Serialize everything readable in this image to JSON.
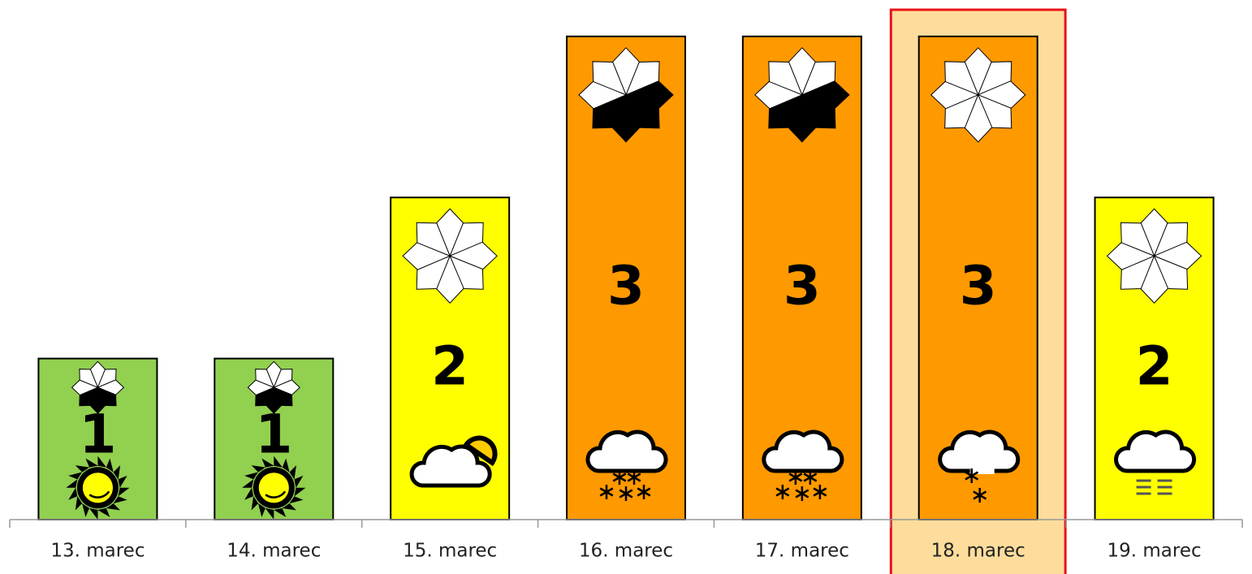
{
  "chart_data": {
    "type": "bar",
    "categories": [
      "13. marec",
      "14. marec",
      "15. marec",
      "16. marec",
      "17. marec",
      "18. marec",
      "19. marec"
    ],
    "values": [
      1,
      1,
      2,
      3,
      3,
      3,
      2
    ],
    "colors": [
      "#92d050",
      "#92d050",
      "#ffff00",
      "#ff9900",
      "#ff9900",
      "#ff9900",
      "#ffff00"
    ],
    "aspects": [
      [
        0,
        0,
        0,
        1,
        1,
        1,
        0,
        0
      ],
      [
        0,
        0,
        0,
        1,
        1,
        1,
        0,
        0
      ],
      [
        0,
        0,
        0,
        0,
        0,
        0,
        0,
        0
      ],
      [
        0,
        0,
        1,
        1,
        1,
        1,
        0,
        0
      ],
      [
        0,
        0,
        1,
        1,
        1,
        1,
        0,
        0
      ],
      [
        0,
        0,
        0,
        0,
        0,
        0,
        0,
        0
      ],
      [
        0,
        0,
        0,
        0,
        0,
        0,
        0,
        0
      ]
    ],
    "icons": [
      "sun",
      "sun",
      "partly-cloudy",
      "snow",
      "snow",
      "light-snow",
      "fog"
    ],
    "ylim": [
      0,
      3.1
    ],
    "selected_index": 5
  }
}
